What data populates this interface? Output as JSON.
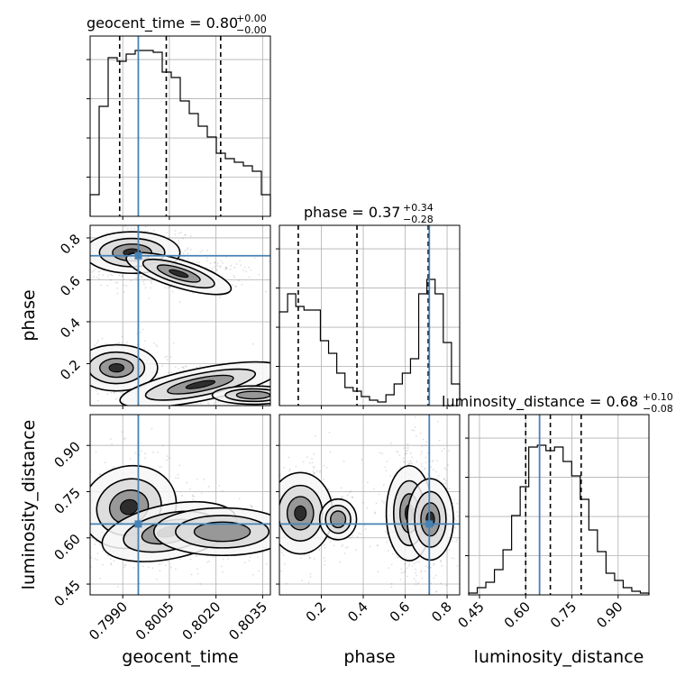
{
  "chart_data": {
    "type": "corner",
    "parameters": [
      "geocent_time",
      "phase",
      "luminosity_distance"
    ],
    "truth_color": "#4682b4",
    "titles": [
      {
        "param": "geocent_time",
        "median": "0.80",
        "plus": "+0.00",
        "minus": "−0.00"
      },
      {
        "param": "phase",
        "median": "0.37",
        "plus": "+0.34",
        "minus": "−0.28"
      },
      {
        "param": "luminosity_distance",
        "median": "0.68",
        "plus": "+0.10",
        "minus": "−0.08"
      }
    ],
    "axis_labels": {
      "x": [
        "geocent_time",
        "phase",
        "luminosity_distance"
      ],
      "y": [
        "phase",
        "luminosity_distance"
      ]
    },
    "ranges": {
      "geocent_time": [
        0.79795,
        0.80375
      ],
      "phase": [
        0.0,
        0.86
      ],
      "luminosity_distance": [
        0.415,
        1.0
      ]
    },
    "ticks": {
      "geocent_time": [
        "0.7990",
        "0.8005",
        "0.8020",
        "0.8035"
      ],
      "phase": [
        "0.2",
        "0.4",
        "0.6",
        "0.8"
      ],
      "phase_y": [
        "0.2",
        "0.4",
        "0.6",
        "0.8"
      ],
      "luminosity_distance": [
        "0.45",
        "0.60",
        "0.75",
        "0.90"
      ]
    },
    "truths": {
      "geocent_time": 0.7995,
      "phase": 0.715,
      "luminosity_distance": 0.645
    },
    "quantiles": {
      "geocent_time": [
        0.7989,
        0.8004,
        0.80215
      ],
      "phase": [
        0.09,
        0.37,
        0.71
      ],
      "luminosity_distance": [
        0.6,
        0.68,
        0.78
      ]
    },
    "histograms": {
      "geocent_time": [
        0.12,
        0.61,
        0.88,
        0.86,
        0.9,
        0.92,
        0.92,
        0.91,
        0.8,
        0.77,
        0.64,
        0.57,
        0.5,
        0.44,
        0.35,
        0.32,
        0.3,
        0.28,
        0.25,
        0.12
      ],
      "phase": [
        0.52,
        0.62,
        0.55,
        0.53,
        0.53,
        0.36,
        0.29,
        0.18,
        0.1,
        0.08,
        0.05,
        0.03,
        0.02,
        0.06,
        0.12,
        0.18,
        0.26,
        0.62,
        0.7,
        0.62,
        0.35,
        0.12
      ],
      "luminosity_distance": [
        0.01,
        0.04,
        0.07,
        0.14,
        0.25,
        0.44,
        0.6,
        0.82,
        0.83,
        0.8,
        0.82,
        0.74,
        0.66,
        0.53,
        0.36,
        0.24,
        0.12,
        0.08,
        0.04,
        0.02,
        0.01
      ]
    },
    "grid": true
  }
}
